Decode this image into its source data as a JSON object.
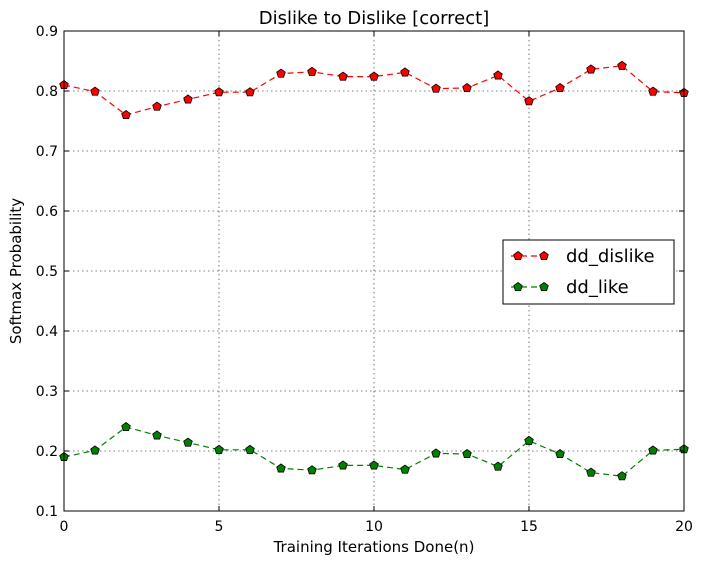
{
  "chart_data": {
    "type": "line",
    "title": "Dislike to Dislike [correct]",
    "xlabel": "Training Iterations Done(n)",
    "ylabel": "Softmax Probability",
    "xlim": [
      0,
      20
    ],
    "ylim": [
      0.1,
      0.9
    ],
    "xticks": [
      0,
      5,
      10,
      15,
      20
    ],
    "xtick_labels": [
      "0",
      "5",
      "10",
      "15",
      "20"
    ],
    "yticks": [
      0.1,
      0.2,
      0.3,
      0.4,
      0.5,
      0.6,
      0.7,
      0.8,
      0.9
    ],
    "ytick_labels": [
      "0.1",
      "0.2",
      "0.3",
      "0.4",
      "0.5",
      "0.6",
      "0.7",
      "0.8",
      "0.9"
    ],
    "grid": true,
    "legend_position": "center-right",
    "x": [
      0,
      1,
      2,
      3,
      4,
      5,
      6,
      7,
      8,
      9,
      10,
      11,
      12,
      13,
      14,
      15,
      16,
      17,
      18,
      19,
      20
    ],
    "series": [
      {
        "name": "dd_dislike",
        "color": "#ff0000",
        "marker": "pentagon",
        "linestyle": "dashed",
        "values": [
          0.81,
          0.799,
          0.76,
          0.774,
          0.786,
          0.798,
          0.798,
          0.829,
          0.832,
          0.824,
          0.824,
          0.831,
          0.804,
          0.805,
          0.826,
          0.783,
          0.805,
          0.836,
          0.842,
          0.799,
          0.797
        ]
      },
      {
        "name": "dd_like",
        "color": "#008000",
        "marker": "pentagon",
        "linestyle": "dashed",
        "values": [
          0.19,
          0.201,
          0.24,
          0.226,
          0.214,
          0.202,
          0.202,
          0.171,
          0.168,
          0.176,
          0.176,
          0.169,
          0.196,
          0.195,
          0.174,
          0.217,
          0.195,
          0.164,
          0.158,
          0.201,
          0.203
        ]
      }
    ]
  }
}
